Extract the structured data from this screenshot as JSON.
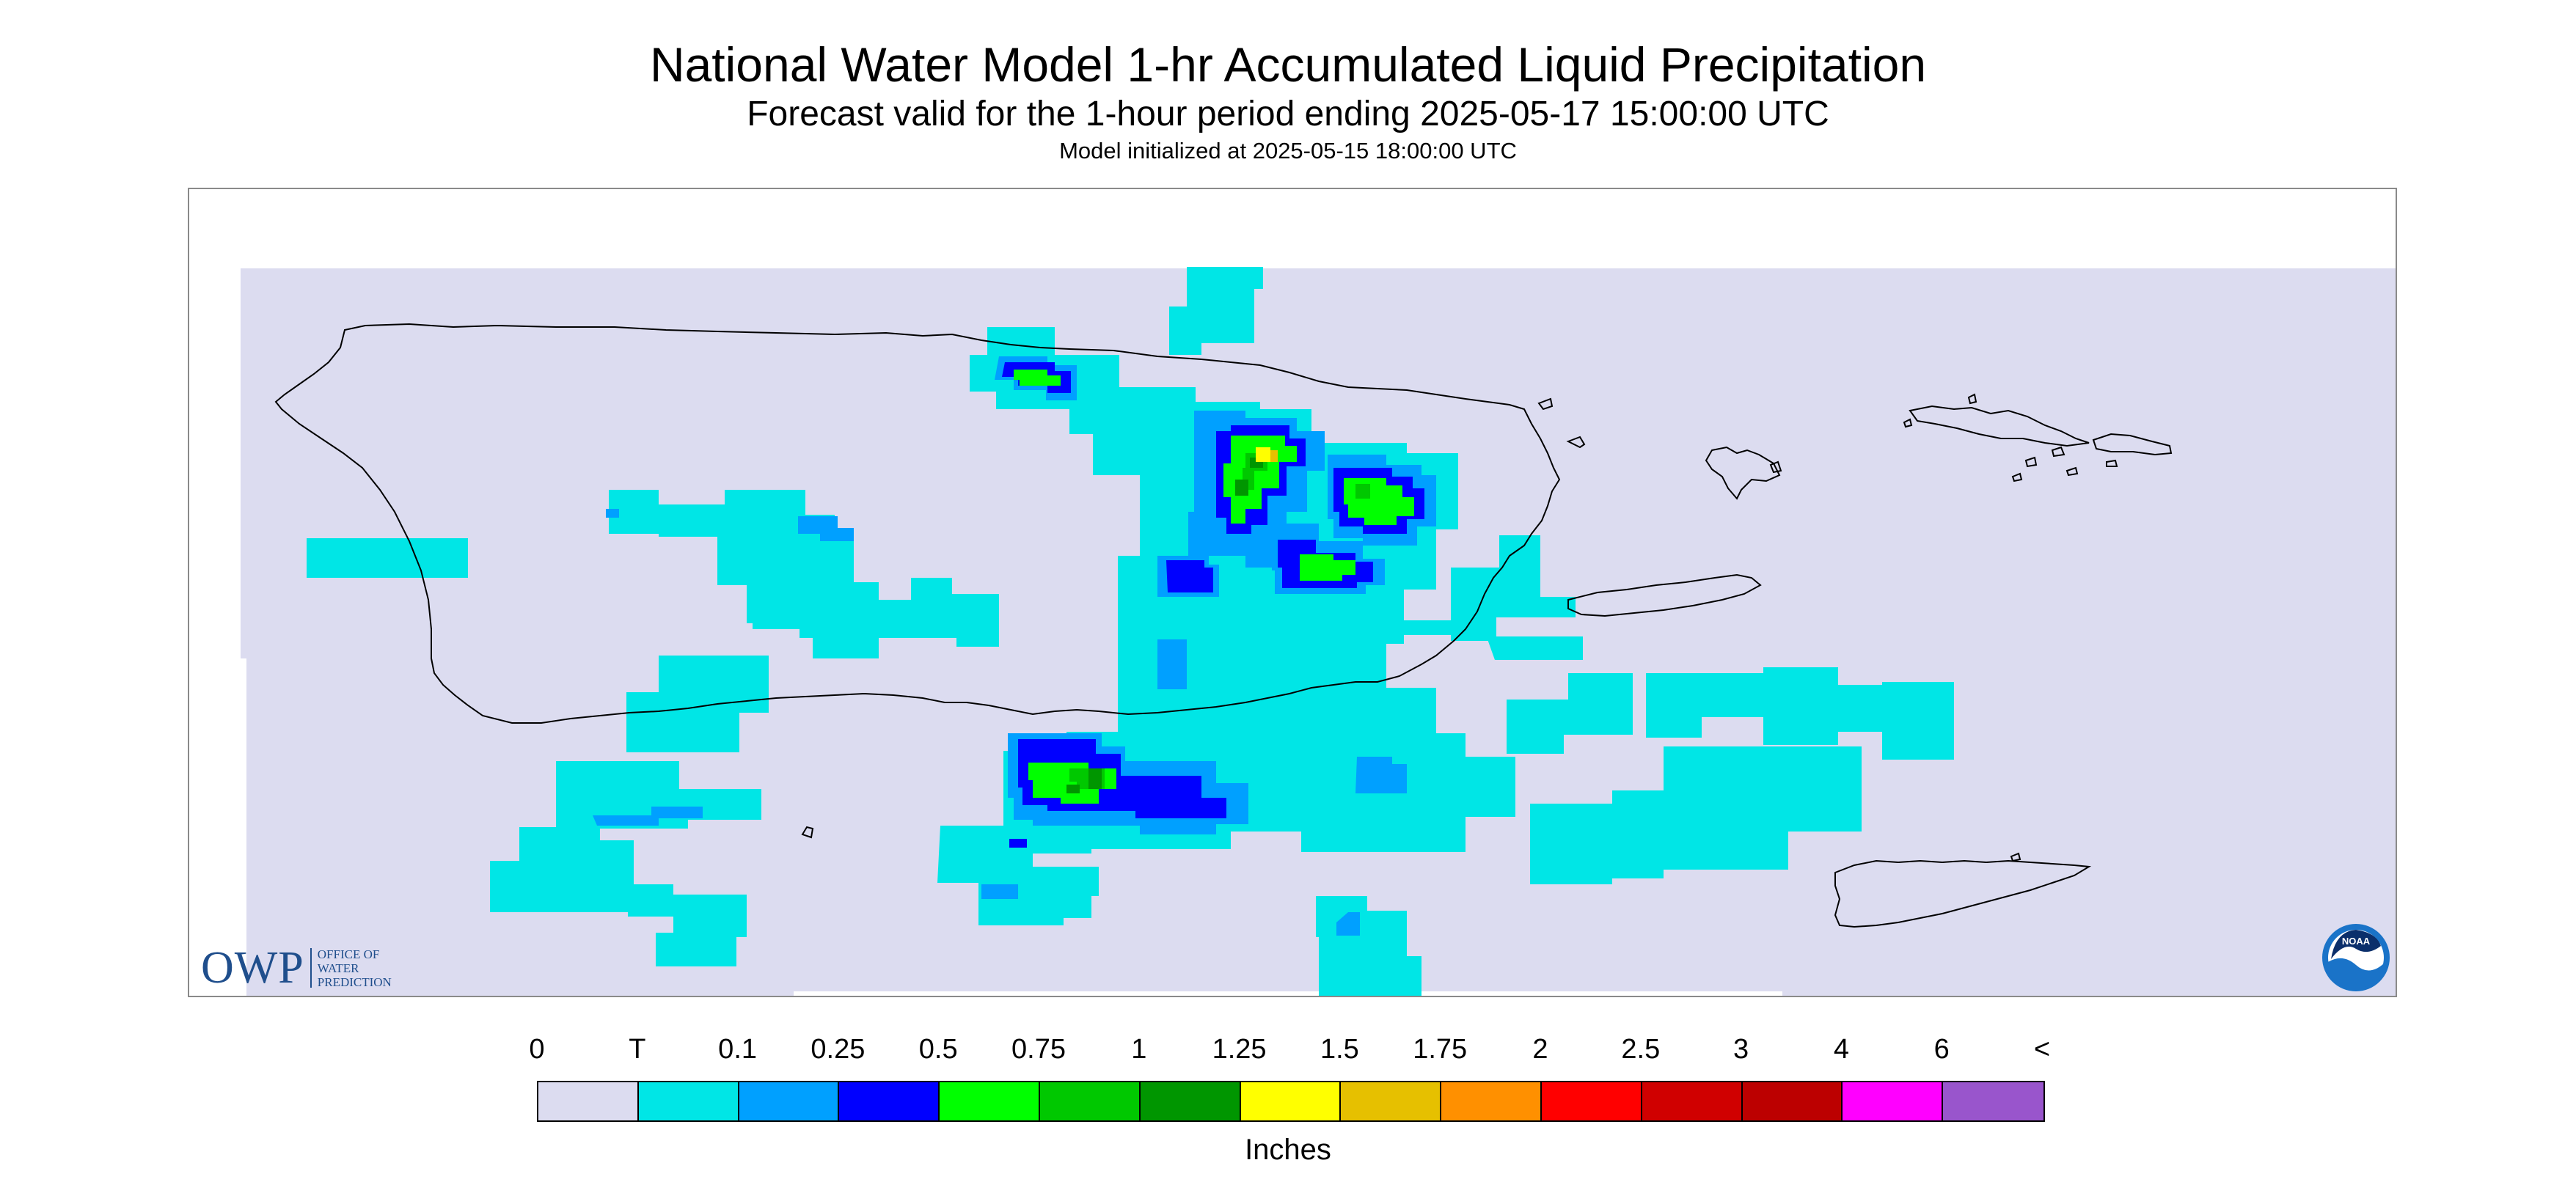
{
  "header": {
    "title": "National Water Model 1-hr Accumulated Liquid Precipitation",
    "subtitle": "Forecast valid for the 1-hour period ending 2025-05-17 15:00:00 UTC",
    "init": "Model initialized at 2025-05-15 18:00:00 UTC"
  },
  "map": {
    "background_color": "#dcdcf0",
    "coast_color": "#000000"
  },
  "logos": {
    "owp_mark": "OWP",
    "owp_line1": "Office of",
    "owp_line2": "Water",
    "owp_line3": "Prediction",
    "noaa_text": "NOAA"
  },
  "legend": {
    "labels": [
      "0",
      "T",
      "0.1",
      "0.25",
      "0.5",
      "0.75",
      "1",
      "1.25",
      "1.5",
      "1.75",
      "2",
      "2.5",
      "3",
      "4",
      "6",
      "<"
    ],
    "colors": [
      "#dcdcf0",
      "#00e6e6",
      "#00a0ff",
      "#0000ff",
      "#00ff00",
      "#00c800",
      "#009600",
      "#ffff00",
      "#e6c000",
      "#ff9000",
      "#ff0000",
      "#d00000",
      "#bc0000",
      "#ff00ff",
      "#9955cc"
    ],
    "units": "Inches"
  }
}
